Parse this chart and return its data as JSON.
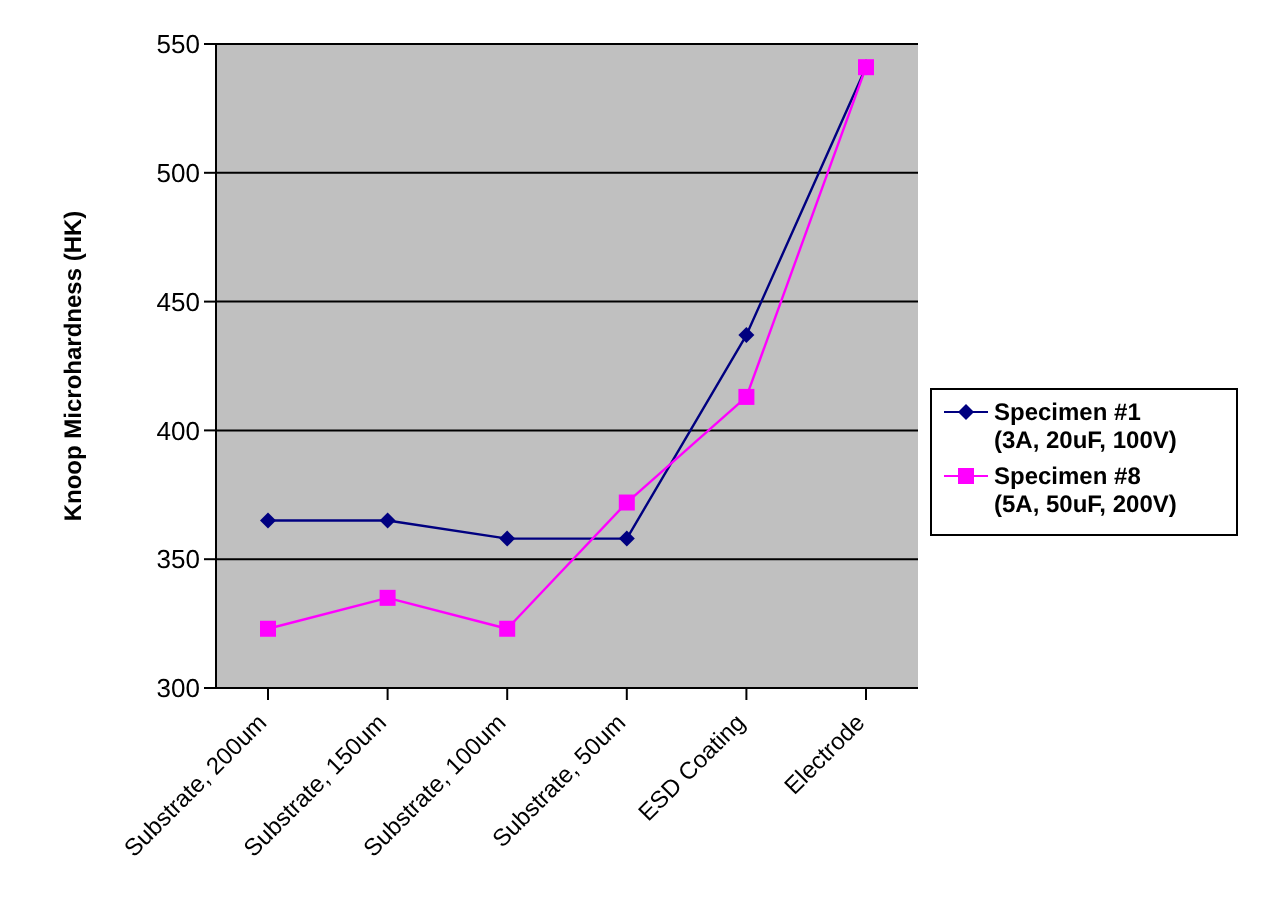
{
  "chart_data": {
    "type": "line",
    "ylabel": "Knoop Microhardness (HK)",
    "categories": [
      "Substrate, 200um",
      "Substrate, 150um",
      "Substrate, 100um",
      "Substrate, 50um",
      "ESD Coating",
      "Electrode"
    ],
    "series": [
      {
        "name": "Specimen #1 (3A, 20uF, 100V)",
        "color": "#000080",
        "marker": "diamond",
        "values": [
          365,
          365,
          358,
          358,
          437,
          541
        ]
      },
      {
        "name": "Specimen #8 (5A, 50uF, 200V)",
        "color": "#ff00ff",
        "marker": "square",
        "values": [
          323,
          335,
          323,
          372,
          413,
          541
        ]
      }
    ],
    "ylim": [
      300,
      550
    ],
    "yticks": [
      300,
      350,
      400,
      450,
      500,
      550
    ],
    "grid": "y",
    "legend": "right"
  }
}
